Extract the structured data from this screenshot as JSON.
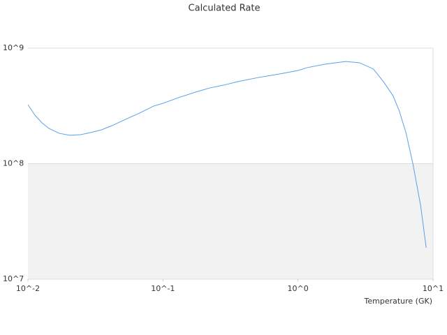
{
  "chart_data": {
    "type": "line",
    "title": "Calculated Rate",
    "x_label": "Temperature (GK)",
    "x_log": true,
    "y_log": true,
    "xlim": [
      0.01,
      10
    ],
    "ylim": [
      10000000,
      1000000000
    ],
    "xticks": [
      {
        "value": 0.01,
        "label": "10^-2"
      },
      {
        "value": 0.1,
        "label": "10^-1"
      },
      {
        "value": 1,
        "label": "10^0"
      },
      {
        "value": 10,
        "label": "10^1"
      }
    ],
    "yticks": [
      {
        "value": 10000000,
        "label": "10^7"
      },
      {
        "value": 100000000,
        "label": "10^8"
      },
      {
        "value": 1000000000,
        "label": "10^9"
      }
    ],
    "grid": true,
    "alternate_bands": true,
    "band_color": "#f2f2f2",
    "series": [
      {
        "color": "#5aa0e8",
        "x": [
          0.01,
          0.01126,
          0.01269,
          0.01429,
          0.01709,
          0.02043,
          0.02443,
          0.02921,
          0.03493,
          0.04176,
          0.0529,
          0.067,
          0.0851,
          0.1,
          0.1295,
          0.1741,
          0.2215,
          0.2806,
          0.3568,
          0.509,
          0.729,
          1.0,
          1.168,
          1.58,
          2.25,
          2.86,
          3.62,
          4.33,
          5.05,
          5.6,
          6.3,
          7.1,
          8.1,
          8.9
        ],
        "values": [
          324000000,
          263000000,
          226000000,
          202000000,
          183000000,
          176000000,
          178000000,
          186000000,
          196000000,
          213000000,
          242000000,
          274000000,
          315000000,
          333000000,
          372000000,
          416000000,
          452000000,
          478000000,
          513000000,
          557000000,
          598000000,
          641000000,
          678000000,
          726000000,
          767000000,
          747000000,
          659000000,
          506000000,
          388000000,
          290000000,
          186000000,
          99300000,
          43100000,
          18700000
        ]
      }
    ]
  }
}
